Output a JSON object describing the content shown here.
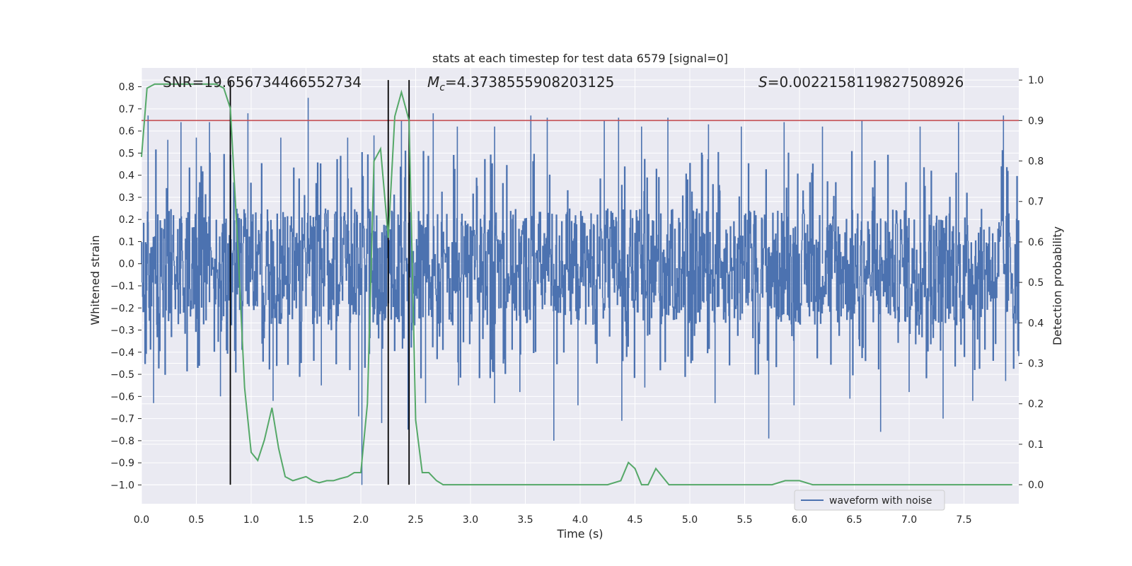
{
  "chart_data": {
    "type": "line",
    "title": "stats at each timestep for test data 6579 [signal=0]",
    "xlabel": "Time (s)",
    "ylabel": "Whitened strain",
    "y2label": "Detection probability",
    "xlim": [
      0.0,
      8.0
    ],
    "ylim": [
      -1.085,
      0.885
    ],
    "y2lim": [
      -0.047,
      1.03
    ],
    "xticks": [
      "0.0",
      "0.5",
      "1.0",
      "1.5",
      "2.0",
      "2.5",
      "3.0",
      "3.5",
      "4.0",
      "4.5",
      "5.0",
      "5.5",
      "6.0",
      "6.5",
      "7.0",
      "7.5"
    ],
    "yticks": [
      "0.8",
      "0.7",
      "0.6",
      "0.5",
      "0.4",
      "0.3",
      "0.2",
      "0.1",
      "0.0",
      "−0.1",
      "−0.2",
      "−0.3",
      "−0.4",
      "−0.5",
      "−0.6",
      "−0.7",
      "−0.8",
      "−0.9",
      "−1.0"
    ],
    "y2ticks": [
      "1.0",
      "0.9",
      "0.8",
      "0.7",
      "0.6",
      "0.5",
      "0.4",
      "0.3",
      "0.2",
      "0.1",
      "0.0"
    ],
    "grid": true,
    "legend_position": "bottom-right",
    "annotations": {
      "snr_label": "SNR",
      "snr_value": "19.656734466552734",
      "mc_label": "M",
      "mc_subscript": "c",
      "mc_value": "4.3738555908203125",
      "s_label": "S",
      "s_value": "0.0022158119827508926"
    },
    "threshold": {
      "value": 0.9,
      "axis": "y2",
      "color": "#c44e52"
    },
    "vertical_markers": [
      0.81,
      2.25,
      2.44
    ],
    "waveform": {
      "name": "waveform with noise",
      "color": "#4c72b0",
      "duration": 8.0,
      "note_distribution": "dense noise, roughly uniform between -0.28 and 0.25 with spikes up to about +/-0.7",
      "spikes": [
        [
          0.06,
          0.67
        ],
        [
          0.24,
          0.56
        ],
        [
          0.36,
          0.64
        ],
        [
          0.5,
          0.57
        ],
        [
          0.62,
          0.64
        ],
        [
          0.97,
          0.68
        ],
        [
          1.27,
          0.57
        ],
        [
          1.52,
          0.75
        ],
        [
          1.88,
          0.57
        ],
        [
          2.12,
          0.58
        ],
        [
          2.37,
          0.65
        ],
        [
          2.66,
          0.68
        ],
        [
          2.88,
          0.62
        ],
        [
          3.22,
          0.62
        ],
        [
          3.55,
          0.67
        ],
        [
          3.7,
          0.66
        ],
        [
          4.22,
          0.65
        ],
        [
          4.35,
          0.66
        ],
        [
          4.56,
          0.62
        ],
        [
          4.8,
          0.66
        ],
        [
          5.17,
          0.63
        ],
        [
          5.47,
          0.62
        ],
        [
          5.86,
          0.64
        ],
        [
          6.21,
          0.62
        ],
        [
          6.57,
          0.65
        ],
        [
          7.1,
          0.62
        ],
        [
          7.45,
          0.64
        ],
        [
          7.86,
          0.67
        ],
        [
          0.11,
          -0.63
        ],
        [
          0.72,
          -0.6
        ],
        [
          1.2,
          -0.62
        ],
        [
          1.64,
          -0.55
        ],
        [
          1.98,
          -0.69
        ],
        [
          2.01,
          -1.0
        ],
        [
          2.19,
          -0.72
        ],
        [
          2.43,
          -0.75
        ],
        [
          2.59,
          -0.63
        ],
        [
          2.89,
          -0.55
        ],
        [
          3.22,
          -0.63
        ],
        [
          3.45,
          -0.58
        ],
        [
          3.76,
          -0.8
        ],
        [
          3.98,
          -0.64
        ],
        [
          4.38,
          -0.71
        ],
        [
          4.59,
          -0.56
        ],
        [
          5.23,
          -0.63
        ],
        [
          5.72,
          -0.79
        ],
        [
          5.95,
          -0.64
        ],
        [
          6.46,
          -0.61
        ],
        [
          6.74,
          -0.76
        ],
        [
          7.0,
          -0.58
        ],
        [
          7.31,
          -0.7
        ],
        [
          7.58,
          -0.62
        ],
        [
          7.88,
          -0.53
        ]
      ]
    },
    "probability": {
      "color": "#55a868",
      "x": [
        0.0,
        0.05,
        0.12,
        0.2,
        0.3,
        0.4,
        0.5,
        0.6,
        0.68,
        0.75,
        0.81,
        0.88,
        0.94,
        1.0,
        1.06,
        1.12,
        1.19,
        1.25,
        1.31,
        1.38,
        1.44,
        1.5,
        1.56,
        1.62,
        1.69,
        1.75,
        1.81,
        1.88,
        1.94,
        2.0,
        2.06,
        2.12,
        2.18,
        2.25,
        2.31,
        2.37,
        2.44,
        2.5,
        2.56,
        2.62,
        2.69,
        2.75,
        2.81,
        2.88,
        3.0,
        3.25,
        3.5,
        3.75,
        4.0,
        4.25,
        4.37,
        4.44,
        4.5,
        4.56,
        4.62,
        4.69,
        4.75,
        4.81,
        4.88,
        5.0,
        5.25,
        5.5,
        5.75,
        5.87,
        6.0,
        6.12,
        6.25,
        6.5,
        6.75,
        6.87,
        7.0,
        7.25,
        7.5,
        7.75,
        7.94
      ],
      "y": [
        0.81,
        0.98,
        0.99,
        0.99,
        0.99,
        0.99,
        0.99,
        0.99,
        0.99,
        0.98,
        0.93,
        0.58,
        0.24,
        0.08,
        0.06,
        0.11,
        0.19,
        0.09,
        0.02,
        0.01,
        0.015,
        0.02,
        0.01,
        0.005,
        0.01,
        0.01,
        0.015,
        0.02,
        0.03,
        0.03,
        0.2,
        0.8,
        0.83,
        0.61,
        0.91,
        0.97,
        0.9,
        0.16,
        0.03,
        0.03,
        0.01,
        0.0,
        0.0,
        0.0,
        0.0,
        0.0,
        0.0,
        0.0,
        0.0,
        0.0,
        0.01,
        0.055,
        0.04,
        0.0,
        0.0,
        0.04,
        0.02,
        0.0,
        0.0,
        0.0,
        0.0,
        0.0,
        0.0,
        0.01,
        0.01,
        0.0,
        0.0,
        0.0,
        0.0,
        0.0,
        0.0,
        0.0,
        0.0,
        0.0,
        0.0
      ]
    }
  }
}
